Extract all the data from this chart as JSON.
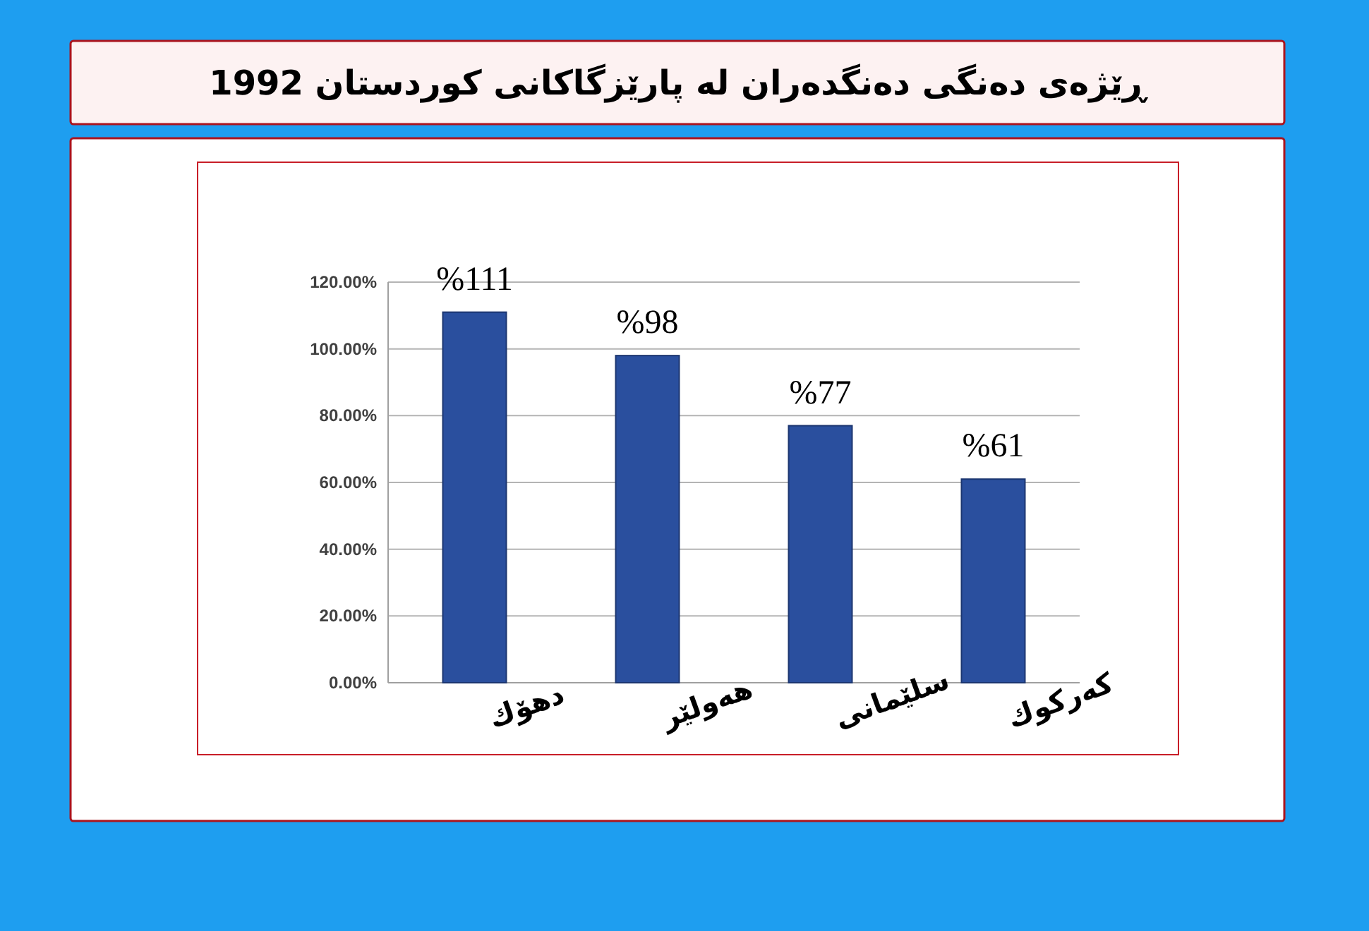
{
  "chart_data": {
    "type": "bar",
    "title": "ڕێژەی دەنگی دەنگدەران لە پارێزگاکانی کوردستان 1992",
    "categories": [
      "دهۆك",
      "هەولێر",
      "سلێمانی",
      "کەرکوك"
    ],
    "values": [
      111,
      98,
      77,
      61
    ],
    "value_labels": [
      "%111",
      "%98",
      "%77",
      "%61"
    ],
    "color": "#2a4f9e",
    "ylim": [
      0,
      120
    ],
    "yticks": [
      {
        "value": 0,
        "label": "0.00%"
      },
      {
        "value": 20,
        "label": "20.00%"
      },
      {
        "value": 40,
        "label": "40.00%"
      },
      {
        "value": 60,
        "label": "60.00%"
      },
      {
        "value": 80,
        "label": "80.00%"
      },
      {
        "value": 100,
        "label": "100.00%"
      },
      {
        "value": 120,
        "label": "120.00%"
      }
    ],
    "grid": "y"
  }
}
